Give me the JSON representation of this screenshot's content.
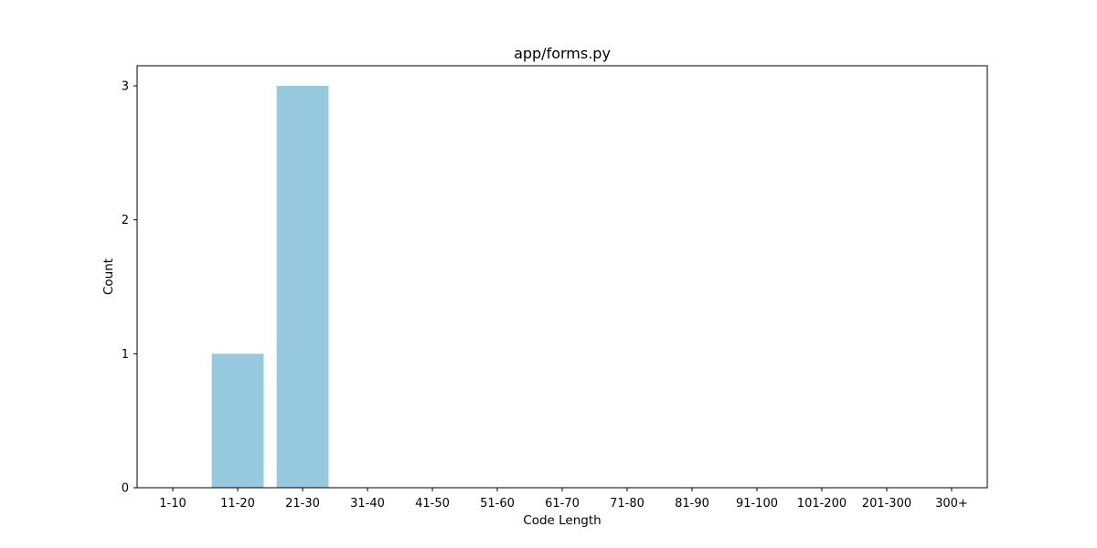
{
  "chart_data": {
    "type": "bar",
    "title": "app/forms.py",
    "xlabel": "Code Length",
    "ylabel": "Count",
    "categories": [
      "1-10",
      "11-20",
      "21-30",
      "31-40",
      "41-50",
      "51-60",
      "61-70",
      "71-80",
      "81-90",
      "91-100",
      "101-200",
      "201-300",
      "300+"
    ],
    "values": [
      0,
      1,
      3,
      0,
      0,
      0,
      0,
      0,
      0,
      0,
      0,
      0,
      0
    ],
    "ylim": [
      0,
      3.15
    ],
    "yticks": [
      0,
      1,
      2,
      3
    ],
    "grid": false,
    "bar_color": "#96c9dd"
  }
}
